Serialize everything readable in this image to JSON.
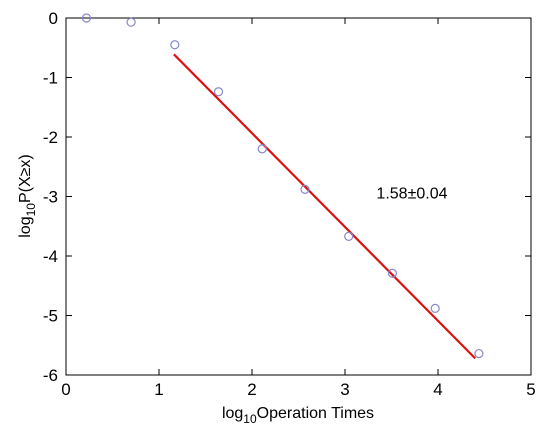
{
  "chart_data": {
    "type": "scatter",
    "xlabel": {
      "prefix": "log",
      "sub": "10",
      "suffix": "Operation Times"
    },
    "ylabel": {
      "prefix": "log",
      "sub": "10",
      "suffix": "P(X≥x)"
    },
    "xlim": [
      0,
      5
    ],
    "ylim": [
      -6,
      0
    ],
    "xticks": [
      0,
      1,
      2,
      3,
      4,
      5
    ],
    "yticks": [
      0,
      -1,
      -2,
      -3,
      -4,
      -5,
      -6
    ],
    "grid": false,
    "series": [
      {
        "marker": "circle-open",
        "color": "#8888c8",
        "points": [
          [
            0.22,
            0.0
          ],
          [
            0.7,
            -0.07
          ],
          [
            1.17,
            -0.45
          ],
          [
            1.64,
            -1.24
          ],
          [
            2.11,
            -2.2
          ],
          [
            2.57,
            -2.88
          ],
          [
            3.04,
            -3.67
          ],
          [
            3.51,
            -4.29
          ],
          [
            3.97,
            -4.88
          ],
          [
            4.44,
            -5.64
          ]
        ]
      }
    ],
    "fit_line": {
      "color": "#dd1111",
      "from": [
        1.16,
        -0.61
      ],
      "to": [
        4.4,
        -5.72
      ]
    },
    "annotation": {
      "text": "1.58±0.04",
      "x": 3.72,
      "y": -3.03
    }
  }
}
